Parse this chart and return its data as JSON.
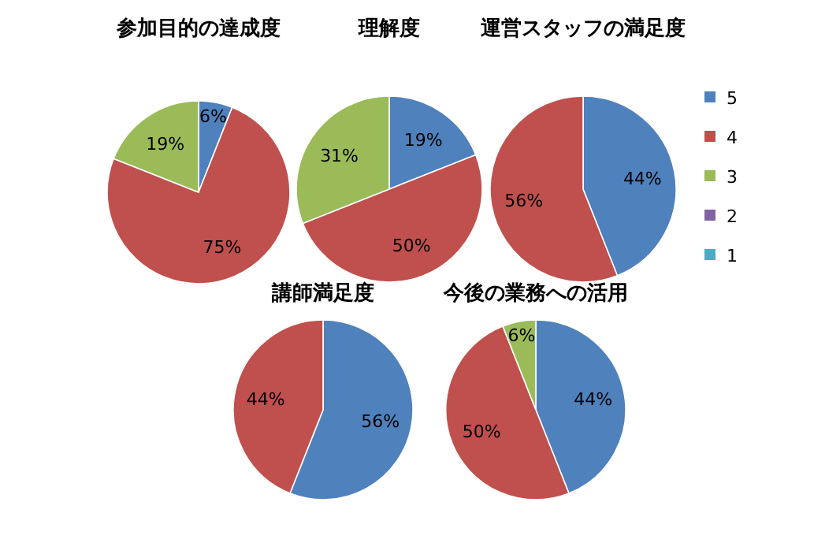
{
  "chart_data": [
    {
      "type": "pie",
      "title": "参加目的の達成度",
      "values": [
        6,
        75,
        19
      ],
      "colors": [
        "#4f81bd",
        "#c0504d",
        "#9bbb59"
      ],
      "value_labels": [
        "6%",
        "75%",
        "19%"
      ]
    },
    {
      "type": "pie",
      "title": "理解度",
      "values": [
        19,
        50,
        31
      ],
      "colors": [
        "#4f81bd",
        "#c0504d",
        "#9bbb59"
      ],
      "value_labels": [
        "19%",
        "50%",
        "31%"
      ]
    },
    {
      "type": "pie",
      "title": "運営スタッフの満足度",
      "categories": [
        "5",
        "4",
        "3",
        "2",
        "1"
      ],
      "values": [
        44,
        56,
        0,
        0,
        0
      ],
      "colors": [
        "#4f81bd",
        "#c0504d",
        "#9bbb59",
        "#8064a2",
        "#4bacc6"
      ],
      "value_labels": [
        "44%",
        "56%",
        null,
        null,
        null
      ],
      "legend": "right"
    },
    {
      "type": "pie",
      "title": "講師満足度",
      "values": [
        56,
        44
      ],
      "colors": [
        "#4f81bd",
        "#c0504d"
      ],
      "value_labels": [
        "56%",
        "44%"
      ]
    },
    {
      "type": "pie",
      "title": "今後の業務への活用",
      "values": [
        44,
        50,
        6
      ],
      "colors": [
        "#4f81bd",
        "#c0504d",
        "#9bbb59"
      ],
      "value_labels": [
        "44%",
        "50%",
        "6%"
      ]
    }
  ]
}
